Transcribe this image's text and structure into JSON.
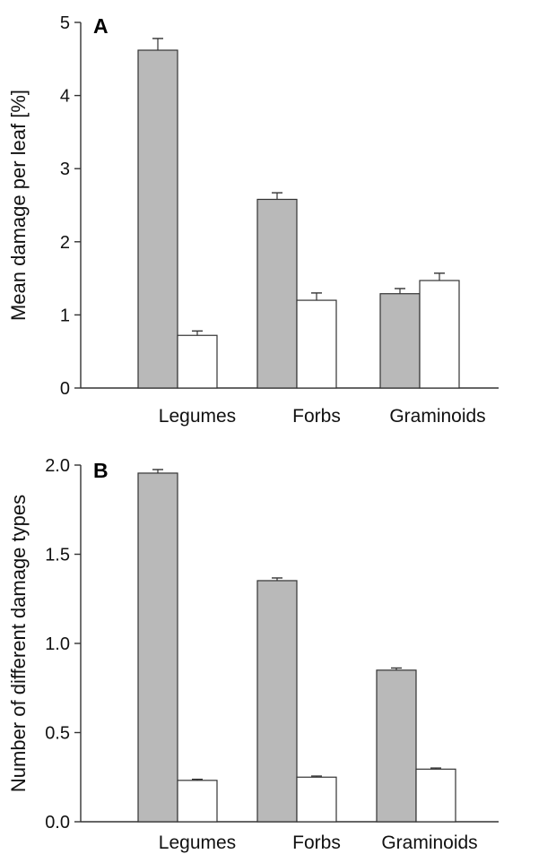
{
  "chart_data": [
    {
      "type": "bar",
      "panel": "A",
      "categories": [
        "Legumes",
        "Forbs",
        "Graminoids"
      ],
      "series": [
        {
          "values": [
            4.62,
            2.58,
            1.29
          ],
          "errors": [
            0.16,
            0.09,
            0.07
          ],
          "color": "#b9b9b9"
        },
        {
          "values": [
            0.72,
            1.2,
            1.47
          ],
          "errors": [
            0.06,
            0.1,
            0.1
          ],
          "color": "#ffffff"
        }
      ],
      "title": "",
      "xlabel": "",
      "ylabel": "Mean damage per leaf [%]",
      "ylim": [
        0,
        5
      ],
      "yticks": [
        0,
        1,
        2,
        3,
        4,
        5
      ],
      "ytick_labels": [
        "0",
        "1",
        "2",
        "3",
        "4",
        "5"
      ],
      "grid": false
    },
    {
      "type": "bar",
      "panel": "B",
      "categories": [
        "Legumes",
        "Forbs",
        "Graminoids"
      ],
      "series": [
        {
          "values": [
            1.955,
            1.352,
            0.85
          ],
          "errors": [
            0.02,
            0.015,
            0.012
          ],
          "color": "#b9b9b9"
        },
        {
          "values": [
            0.232,
            0.25,
            0.295
          ],
          "errors": [
            0.006,
            0.006,
            0.006
          ],
          "color": "#ffffff"
        }
      ],
      "title": "",
      "xlabel": "",
      "ylabel": "Number of different damage types",
      "ylim": [
        0,
        2.0
      ],
      "yticks": [
        0,
        0.5,
        1.0,
        1.5,
        2.0
      ],
      "ytick_labels": [
        "0.0",
        "0.5",
        "1.0",
        "1.5",
        "2.0"
      ],
      "grid": false
    }
  ]
}
